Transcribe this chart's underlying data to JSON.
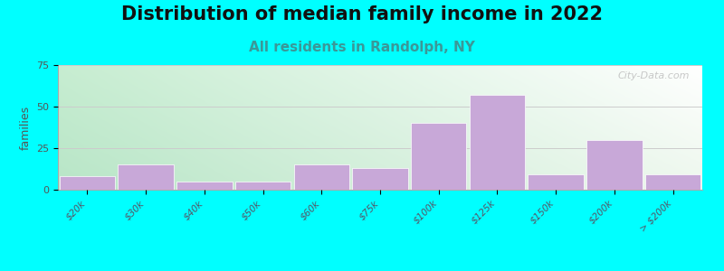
{
  "title": "Distribution of median family income in 2022",
  "subtitle": "All residents in Randolph, NY",
  "ylabel": "families",
  "categories": [
    "$20k",
    "$30k",
    "$40k",
    "$50k",
    "$60k",
    "$75k",
    "$100k",
    "$125k",
    "$150k",
    "$200k",
    "> $200k"
  ],
  "values": [
    8,
    15,
    5,
    5,
    15,
    13,
    40,
    57,
    9,
    30,
    9
  ],
  "bar_color": "#c8a8d8",
  "background_color": "#00FFFF",
  "plot_bg_topleft": "#c8ead8",
  "plot_bg_topright": "#ffffff",
  "plot_bg_bottomleft": "#a8dcc8",
  "plot_bg_bottomright": "#e8f4e8",
  "ylim": [
    0,
    75
  ],
  "yticks": [
    0,
    25,
    50,
    75
  ],
  "title_fontsize": 15,
  "subtitle_fontsize": 11,
  "subtitle_color": "#3a9898",
  "ylabel_fontsize": 9,
  "watermark": "City-Data.com"
}
